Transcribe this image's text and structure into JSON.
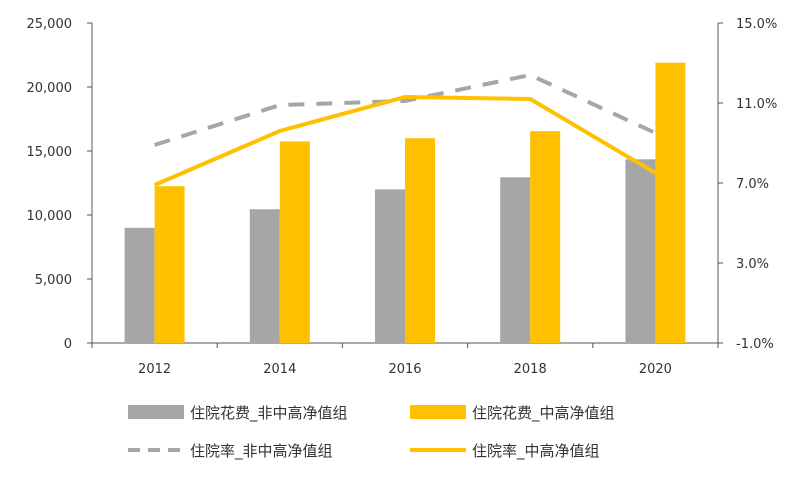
{
  "chart_data": {
    "type": "bar",
    "categories": [
      "2012",
      "2014",
      "2016",
      "2018",
      "2020"
    ],
    "series": [
      {
        "name": "住院花费_非中高净值组",
        "kind": "bar",
        "axis": "left",
        "color": "#a6a6a6",
        "values": [
          9000,
          10450,
          12000,
          12950,
          14350
        ]
      },
      {
        "name": "住院花费_中高净值组",
        "kind": "bar",
        "axis": "left",
        "color": "#ffc000",
        "values": [
          12250,
          15750,
          16000,
          16550,
          21900
        ]
      },
      {
        "name": "住院率_非中高净值组",
        "kind": "line",
        "style": "dashed",
        "axis": "right",
        "color": "#a6a6a6",
        "values": [
          8.9,
          10.9,
          11.1,
          12.4,
          9.5
        ]
      },
      {
        "name": "住院率_中高净值组",
        "kind": "line",
        "style": "solid",
        "axis": "right",
        "color": "#ffc000",
        "values": [
          6.9,
          9.6,
          11.3,
          11.2,
          7.5
        ]
      }
    ],
    "y_left": {
      "min": 0,
      "max": 25000,
      "ticks": [
        "0",
        "5,000",
        "10,000",
        "15,000",
        "20,000",
        "25,000"
      ]
    },
    "y_right": {
      "min": -1.0,
      "max": 15.0,
      "ticks": [
        "-1.0%",
        "3.0%",
        "7.0%",
        "11.0%",
        "15.0%"
      ]
    },
    "title": "",
    "xlabel": "",
    "ylabel": "",
    "grid": false,
    "legend_position": "bottom"
  }
}
